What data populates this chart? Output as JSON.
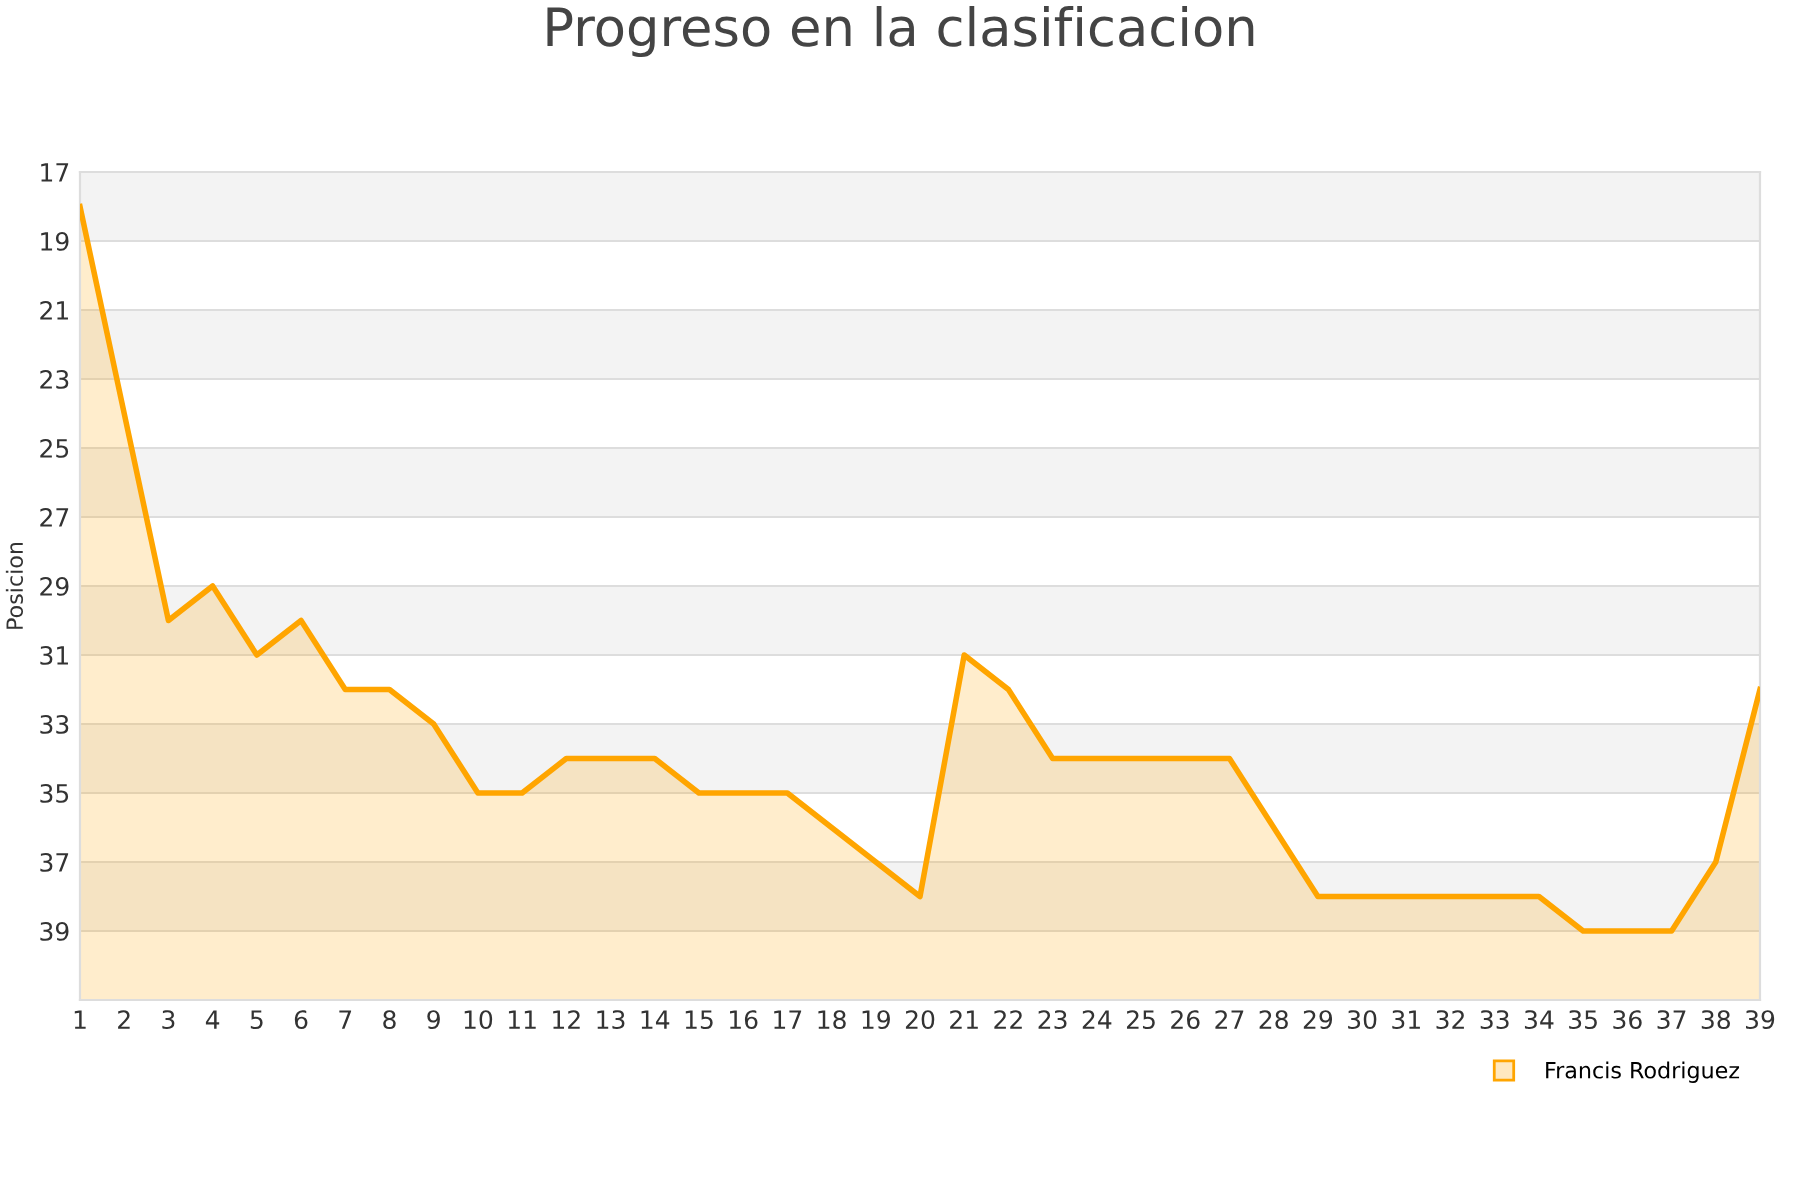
{
  "chart_data": {
    "type": "area",
    "title": "Progreso en la clasificacion",
    "ylabel": "Posicion",
    "x": [
      1,
      2,
      3,
      4,
      5,
      6,
      7,
      8,
      9,
      10,
      11,
      12,
      13,
      14,
      15,
      16,
      17,
      18,
      19,
      20,
      21,
      22,
      23,
      24,
      25,
      26,
      27,
      28,
      29,
      30,
      31,
      32,
      33,
      34,
      35,
      36,
      37,
      38,
      39
    ],
    "series": [
      {
        "name": "Francis Rodriguez",
        "color": "#ffa500",
        "values": [
          18,
          24,
          30,
          29,
          31,
          30,
          32,
          32,
          33,
          35,
          35,
          34,
          34,
          34,
          35,
          35,
          35,
          36,
          37,
          38,
          31,
          32,
          34,
          34,
          34,
          34,
          34,
          36,
          38,
          38,
          38,
          38,
          38,
          38,
          39,
          39,
          39,
          37,
          32
        ]
      }
    ],
    "xlim": [
      1,
      39
    ],
    "xticks": [
      1,
      2,
      3,
      4,
      5,
      6,
      7,
      8,
      9,
      10,
      11,
      12,
      13,
      14,
      15,
      16,
      17,
      18,
      19,
      20,
      21,
      22,
      23,
      24,
      25,
      26,
      27,
      28,
      29,
      30,
      31,
      32,
      33,
      34,
      35,
      36,
      37,
      38,
      39
    ],
    "ylim": [
      41,
      17
    ],
    "yticks": [
      17,
      19,
      21,
      23,
      25,
      27,
      29,
      31,
      33,
      35,
      37,
      39
    ],
    "grid": "y",
    "legend": "bottom right",
    "bands": [
      {
        "axis": "y",
        "from": 17,
        "to": 19,
        "color": "#f3f3f3"
      },
      {
        "axis": "y",
        "from": 21,
        "to": 23,
        "color": "#f3f3f3"
      },
      {
        "axis": "y",
        "from": 25,
        "to": 27,
        "color": "#f3f3f3"
      },
      {
        "axis": "y",
        "from": 29,
        "to": 31,
        "color": "#f3f3f3"
      },
      {
        "axis": "y",
        "from": 33,
        "to": 35,
        "color": "#f3f3f3"
      },
      {
        "axis": "y",
        "from": 37,
        "to": 39,
        "color": "#f3f3f3"
      }
    ]
  }
}
